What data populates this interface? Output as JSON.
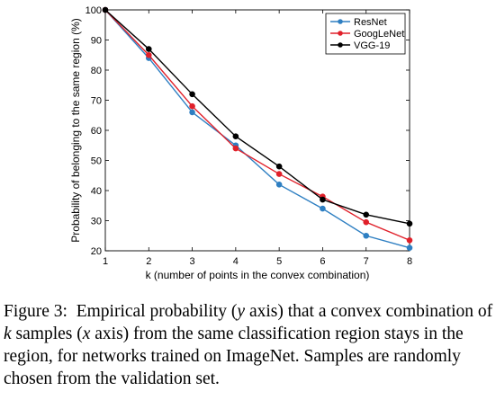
{
  "chart_data": {
    "type": "line",
    "title": "",
    "xlabel": "k (number of points in the convex combination)",
    "ylabel": "Probability of belonging to the same region (%)",
    "xlim": [
      1,
      8
    ],
    "ylim": [
      20,
      100
    ],
    "xticks": [
      1,
      2,
      3,
      4,
      5,
      6,
      7,
      8
    ],
    "yticks": [
      20,
      30,
      40,
      50,
      60,
      70,
      80,
      90,
      100
    ],
    "x": [
      1,
      2,
      3,
      4,
      5,
      6,
      7,
      8
    ],
    "grid": false,
    "legend_position": "top-right",
    "series": [
      {
        "name": "ResNet",
        "color": "#2e7fc2",
        "values": [
          100,
          84,
          66,
          55,
          42,
          34,
          25,
          21
        ]
      },
      {
        "name": "GoogLeNet",
        "color": "#e0202a",
        "values": [
          100,
          85,
          68,
          54,
          45.5,
          38,
          29.5,
          23.5
        ]
      },
      {
        "name": "VGG-19",
        "color": "#000000",
        "values": [
          100,
          87,
          72,
          58,
          48,
          37,
          32,
          29
        ]
      }
    ]
  },
  "caption": {
    "label": "Figure 3:",
    "parts": [
      "Empirical probability (",
      "y",
      " axis) that a convex combination of ",
      "k",
      " samples (",
      "x",
      " axis) from the same classification region stays in the region, for networks trained on ImageNet. Samples are randomly chosen from the validation set."
    ]
  }
}
